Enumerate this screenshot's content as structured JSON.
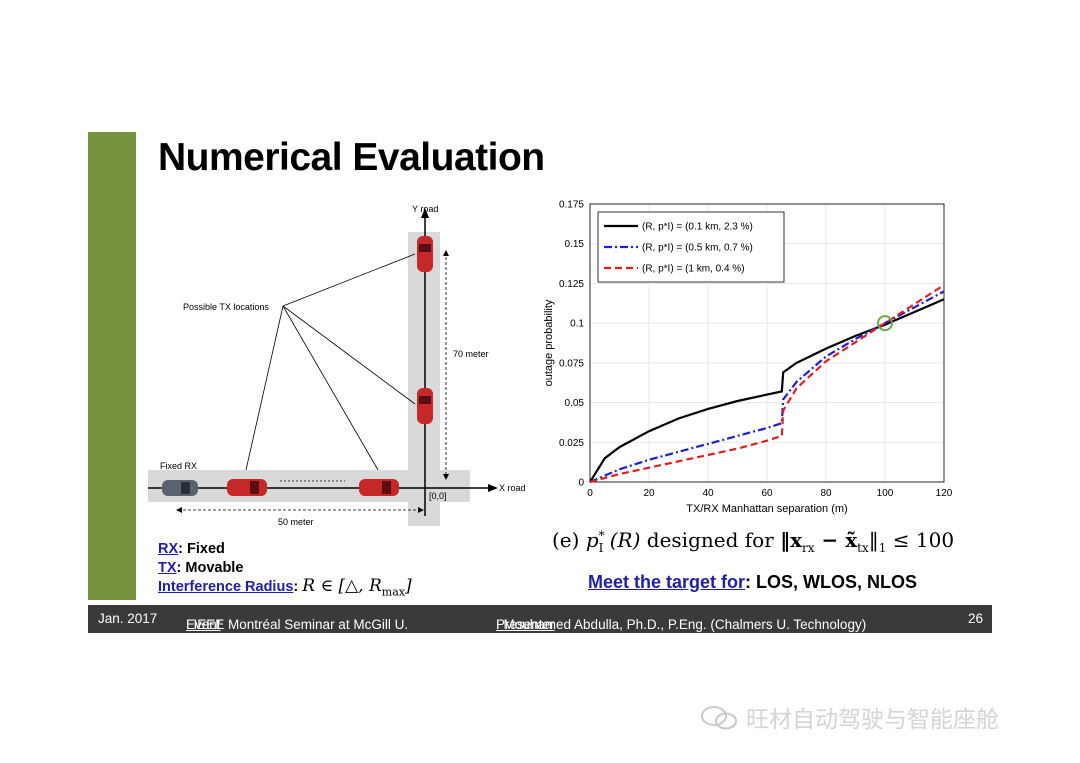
{
  "title": "Numerical Evaluation",
  "diagram": {
    "y_road": "Y road",
    "x_road": "X road",
    "possible_tx": "Possible TX locations",
    "fixed_rx": "Fixed RX",
    "dist_70": "70 meter",
    "dist_50": "50 meter",
    "origin": "[0,0]"
  },
  "definitions": {
    "rx_term": "RX",
    "rx_value": ": Fixed",
    "tx_term": "TX",
    "tx_value": ": Movable",
    "ir_term": "Interference Radius",
    "ir_colon": ":",
    "ir_math": "R ∈ [△, R",
    "ir_math_sub": "max",
    "ir_math_end": "]"
  },
  "caption": {
    "prefix": "(e) ",
    "p": "p",
    "p_sub": "I",
    "p_sup": "*",
    "r_arg": " (R) ",
    "text": "designed for ",
    "norm": "‖x",
    "norm_sub1": "rx",
    "minus": " − x̃",
    "norm_sub2": "tx",
    "norm_end": "‖",
    "norm_sub3": "1",
    "leq": " ≤ 100"
  },
  "target": {
    "label": "Meet the target for",
    "value": ": LOS, WLOS, NLOS"
  },
  "footer": {
    "date": "Jan. 2017",
    "event_label": "Event",
    "event_value": ": IEEE Montréal Seminar at McGill U.",
    "presenter_label": "Presenter",
    "presenter_value": ": Mouhamed Abdulla, Ph.D., P.Eng. (Chalmers U. Technology)",
    "page": "26"
  },
  "watermark": "旺材自动驾驶与智能座舱",
  "colors": {
    "accent_bar": "#76923c",
    "footer_bg": "#3a3a3a",
    "link": "#1f1fa8"
  },
  "chart_data": {
    "type": "line",
    "xlabel": "TX/RX Manhattan separation (m)",
    "ylabel": "outage probability",
    "xlim": [
      0,
      120
    ],
    "ylim": [
      0,
      0.175
    ],
    "xticks": [
      0,
      20,
      40,
      60,
      80,
      100,
      120
    ],
    "yticks": [
      0,
      0.025,
      0.05,
      0.075,
      0.1,
      0.125,
      0.15,
      0.175
    ],
    "grid": true,
    "legend_position": "top-left",
    "series": [
      {
        "name": "(R, p*I) = (0.1 km, 2.3 %)",
        "color": "#000000",
        "dash": "solid",
        "x": [
          0,
          5,
          10,
          20,
          30,
          40,
          50,
          60,
          65,
          65.5,
          70,
          80,
          90,
          100,
          110,
          120
        ],
        "y": [
          0,
          0.015,
          0.022,
          0.032,
          0.04,
          0.046,
          0.051,
          0.055,
          0.057,
          0.069,
          0.075,
          0.084,
          0.092,
          0.099,
          0.107,
          0.115
        ]
      },
      {
        "name": "(R, p*I) = (0.5 km, 0.7 %)",
        "color": "#1f1fd0",
        "dash": "dashdot",
        "x": [
          0,
          10,
          20,
          30,
          40,
          50,
          60,
          65,
          65.5,
          70,
          80,
          90,
          100,
          110,
          120
        ],
        "y": [
          0,
          0.008,
          0.014,
          0.019,
          0.024,
          0.029,
          0.034,
          0.037,
          0.052,
          0.063,
          0.079,
          0.09,
          0.1,
          0.11,
          0.12
        ]
      },
      {
        "name": "(R, p*I) = (1 km, 0.4 %)",
        "color": "#e02020",
        "dash": "dashed",
        "x": [
          0,
          10,
          20,
          30,
          40,
          50,
          60,
          65,
          65.5,
          70,
          80,
          90,
          100,
          110,
          120
        ],
        "y": [
          0,
          0.005,
          0.009,
          0.013,
          0.017,
          0.021,
          0.026,
          0.029,
          0.045,
          0.059,
          0.076,
          0.088,
          0.1,
          0.112,
          0.124
        ]
      }
    ],
    "marker": {
      "x": 100,
      "y": 0.1,
      "color": "#6aa84f"
    }
  }
}
